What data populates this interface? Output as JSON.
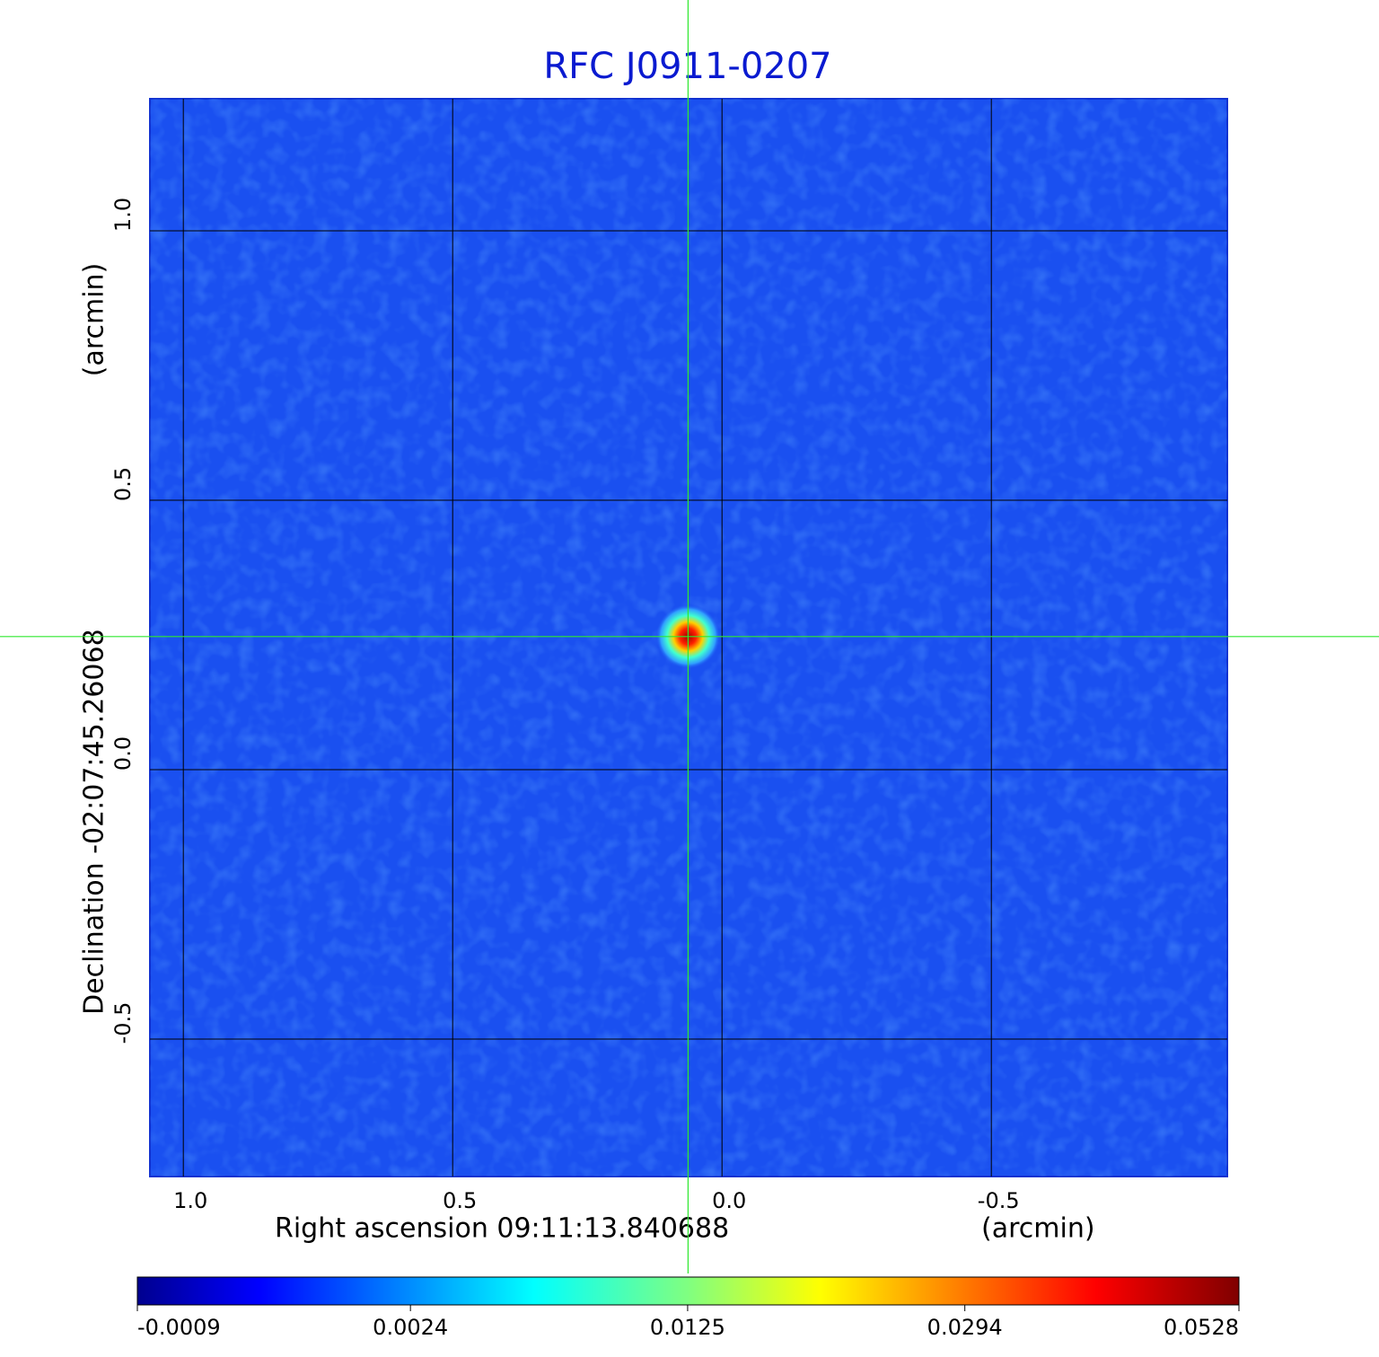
{
  "chart_data": {
    "type": "image",
    "title": "RFC J0911-0207",
    "x_label": "Right ascension  09:11:13.840688",
    "x_unit": "(arcmin)",
    "y_label": "Declination  -02:07:45.26068",
    "y_unit": "(arcmin)",
    "xlim": [
      1.062,
      -0.938
    ],
    "ylim": [
      -0.755,
      1.245
    ],
    "xticks": [
      {
        "value": 1,
        "label": "1.0"
      },
      0.5,
      {
        "value": 0,
        "label": "0.0"
      },
      -0.5
    ],
    "yticks": [
      -0.5,
      {
        "value": 0,
        "label": "0.0"
      },
      0.5,
      {
        "value": 1,
        "label": "1.0"
      }
    ],
    "grid": true,
    "marker": {
      "x": 0.063,
      "y": 0.247
    },
    "colorbar": {
      "scale": "sqrt",
      "lim": [
        -0.0009,
        0.0528
      ],
      "ticks": [
        -0.0009,
        0.0024,
        0.0125,
        0.0294,
        0.0528
      ]
    }
  }
}
